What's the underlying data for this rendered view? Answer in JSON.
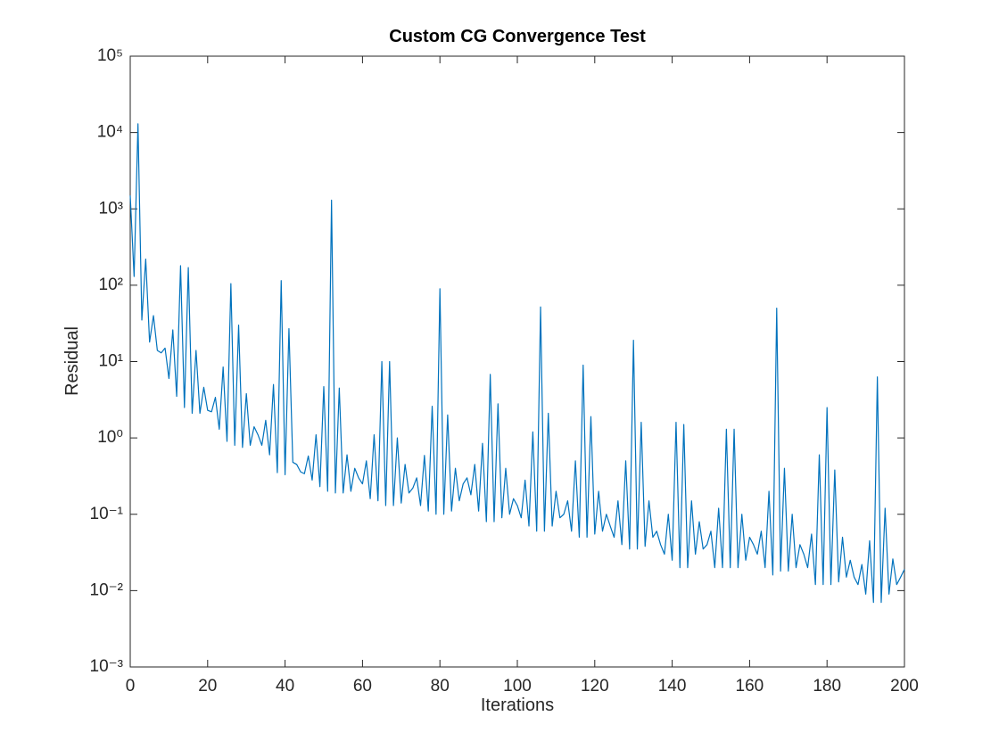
{
  "chart_data": {
    "type": "line",
    "title": "Custom CG Convergence Test",
    "x_label": "Iterations",
    "y_label": "Residual",
    "log_y": true,
    "color": "#0072bd",
    "xlim": [
      0,
      200
    ],
    "xticks": [
      0,
      20,
      40,
      60,
      80,
      100,
      120,
      140,
      160,
      180,
      200
    ],
    "ylim": [
      0.001,
      100000
    ],
    "yticks": [
      {
        "value": 0.001,
        "label": "10⁻³"
      },
      {
        "value": 0.01,
        "label": "10⁻²"
      },
      {
        "value": 0.1,
        "label": "10⁻¹"
      },
      {
        "value": 1,
        "label": "10⁰"
      },
      {
        "value": 10,
        "label": "10¹"
      },
      {
        "value": 100,
        "label": "10²"
      },
      {
        "value": 1000,
        "label": "10³"
      },
      {
        "value": 10000,
        "label": "10⁴"
      },
      {
        "value": 100000,
        "label": "10⁵"
      }
    ],
    "x": [
      0,
      1,
      2,
      3,
      4,
      5,
      6,
      7,
      8,
      9,
      10,
      11,
      12,
      13,
      14,
      15,
      16,
      17,
      18,
      19,
      20,
      21,
      22,
      23,
      24,
      25,
      26,
      27,
      28,
      29,
      30,
      31,
      32,
      33,
      34,
      35,
      36,
      37,
      38,
      39,
      40,
      41,
      42,
      43,
      44,
      45,
      46,
      47,
      48,
      49,
      50,
      51,
      52,
      53,
      54,
      55,
      56,
      57,
      58,
      59,
      60,
      61,
      62,
      63,
      64,
      65,
      66,
      67,
      68,
      69,
      70,
      71,
      72,
      73,
      74,
      75,
      76,
      77,
      78,
      79,
      80,
      81,
      82,
      83,
      84,
      85,
      86,
      87,
      88,
      89,
      90,
      91,
      92,
      93,
      94,
      95,
      96,
      97,
      98,
      99,
      100,
      101,
      102,
      103,
      104,
      105,
      106,
      107,
      108,
      109,
      110,
      111,
      112,
      113,
      114,
      115,
      116,
      117,
      118,
      119,
      120,
      121,
      122,
      123,
      124,
      125,
      126,
      127,
      128,
      129,
      130,
      131,
      132,
      133,
      134,
      135,
      136,
      137,
      138,
      139,
      140,
      141,
      142,
      143,
      144,
      145,
      146,
      147,
      148,
      149,
      150,
      151,
      152,
      153,
      154,
      155,
      156,
      157,
      158,
      159,
      160,
      161,
      162,
      163,
      164,
      165,
      166,
      167,
      168,
      169,
      170,
      171,
      172,
      173,
      174,
      175,
      176,
      177,
      178,
      179,
      180,
      181,
      182,
      183,
      184,
      185,
      186,
      187,
      188,
      189,
      190,
      191,
      192,
      193,
      194,
      195,
      196,
      197,
      198,
      199,
      200
    ],
    "values": [
      1500,
      130,
      13000,
      35,
      220,
      18,
      40,
      14,
      13,
      15,
      6,
      26,
      3.5,
      180,
      2.5,
      170,
      2.1,
      14,
      2.1,
      4.6,
      2.3,
      2.2,
      3.4,
      1.3,
      8.5,
      0.9,
      105,
      0.8,
      30,
      0.75,
      3.8,
      0.8,
      1.4,
      1.1,
      0.8,
      1.7,
      0.6,
      5,
      0.35,
      115,
      0.33,
      27,
      0.48,
      0.45,
      0.36,
      0.34,
      0.58,
      0.28,
      1.1,
      0.23,
      4.7,
      0.2,
      1300,
      0.19,
      4.5,
      0.19,
      0.6,
      0.2,
      0.4,
      0.3,
      0.25,
      0.5,
      0.16,
      1.1,
      0.15,
      10,
      0.13,
      10,
      0.13,
      1,
      0.14,
      0.45,
      0.19,
      0.22,
      0.3,
      0.13,
      0.59,
      0.11,
      2.6,
      0.1,
      90,
      0.1,
      2,
      0.11,
      0.4,
      0.15,
      0.25,
      0.3,
      0.18,
      0.45,
      0.11,
      0.85,
      0.08,
      6.8,
      0.08,
      2.8,
      0.09,
      0.4,
      0.1,
      0.16,
      0.13,
      0.09,
      0.28,
      0.07,
      1.2,
      0.06,
      52,
      0.06,
      2.1,
      0.07,
      0.2,
      0.09,
      0.1,
      0.15,
      0.06,
      0.5,
      0.05,
      9,
      0.05,
      1.9,
      0.055,
      0.2,
      0.06,
      0.1,
      0.07,
      0.05,
      0.15,
      0.04,
      0.5,
      0.035,
      19,
      0.035,
      1.6,
      0.038,
      0.15,
      0.05,
      0.06,
      0.04,
      0.03,
      0.1,
      0.025,
      1.6,
      0.02,
      1.5,
      0.02,
      0.15,
      0.03,
      0.08,
      0.035,
      0.04,
      0.06,
      0.02,
      0.12,
      0.02,
      1.3,
      0.02,
      1.3,
      0.02,
      0.1,
      0.025,
      0.05,
      0.04,
      0.03,
      0.06,
      0.02,
      0.2,
      0.016,
      50,
      0.018,
      0.4,
      0.018,
      0.1,
      0.02,
      0.04,
      0.03,
      0.02,
      0.055,
      0.012,
      0.6,
      0.012,
      2.5,
      0.012,
      0.38,
      0.013,
      0.05,
      0.015,
      0.025,
      0.015,
      0.012,
      0.022,
      0.009,
      0.045,
      0.007,
      6.3,
      0.007,
      0.12,
      0.009,
      0.026,
      0.012,
      0.015,
      0.019
    ]
  }
}
